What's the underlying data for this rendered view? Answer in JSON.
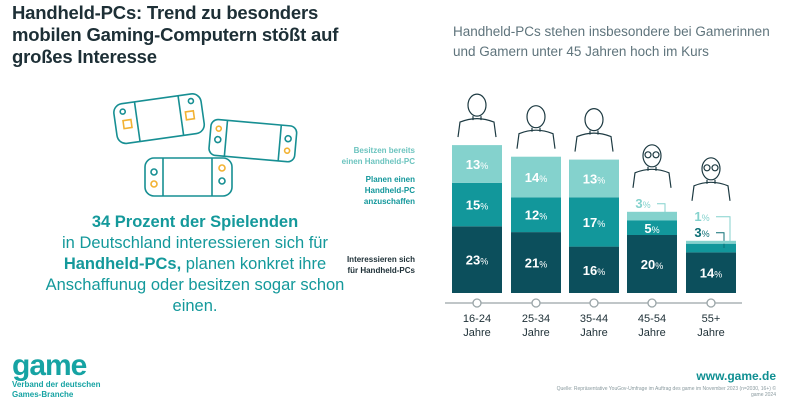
{
  "title": "Handheld-PCs: Trend zu besonders mobilen Gaming-Computern stößt auf großes Interesse",
  "lead": {
    "bold1": "34 Prozent der Spielenden",
    "text1": "in Deutschland interessieren sich für",
    "bold2": "Handheld-PCs,",
    "text2": "planen konkret ihre Anschaffunug oder besitzen sogar schon einen."
  },
  "chart_data": {
    "type": "bar",
    "stacked": true,
    "title": "Handheld-PCs stehen insbesondere bei Gamerinnen und Gamern unter 45 Jahren hoch im Kurs",
    "categories": [
      "16-24 Jahre",
      "25-34 Jahre",
      "35-44 Jahre",
      "45-54 Jahre",
      "55+ Jahre"
    ],
    "category_lines": [
      [
        "16-24",
        "Jahre"
      ],
      [
        "25-34",
        "Jahre"
      ],
      [
        "35-44",
        "Jahre"
      ],
      [
        "45-54",
        "Jahre"
      ],
      [
        "55+",
        "Jahre"
      ]
    ],
    "unit": "%",
    "legend_placement": "left",
    "series": [
      {
        "name": "Interessieren sich für Handheld-PCs",
        "values": [
          23,
          21,
          16,
          20,
          14
        ],
        "color": "#0c4f5c"
      },
      {
        "name": "Planen einen Handheld-PC anzuschaffen",
        "values": [
          15,
          12,
          17,
          5,
          3
        ],
        "color": "#12979b"
      },
      {
        "name": "Besitzen bereits einen Handheld-PC",
        "values": [
          13,
          14,
          13,
          3,
          1
        ],
        "color": "#84d2cd"
      }
    ],
    "legend_lines": [
      [
        "Interessieren sich",
        "für Handheld-PCs"
      ],
      [
        "Planen einen",
        "Handheld-PC",
        "anzuschaffen"
      ],
      [
        "Besitzen bereits",
        "einen Handheld-PC"
      ]
    ]
  },
  "colors": {
    "accent": "#14999b",
    "dark": "#0c4f5c",
    "light": "#84d2cd",
    "orange": "#f2b233"
  },
  "footer": {
    "logo": "game",
    "logo_sub": "Verband der deutschen Games-Branche",
    "url": "www.game.de",
    "source": "Quelle: Repräsentative YouGov-Umfrage im Auftrag des game im November 2023 (n=2030, 16+) © game 2024"
  }
}
